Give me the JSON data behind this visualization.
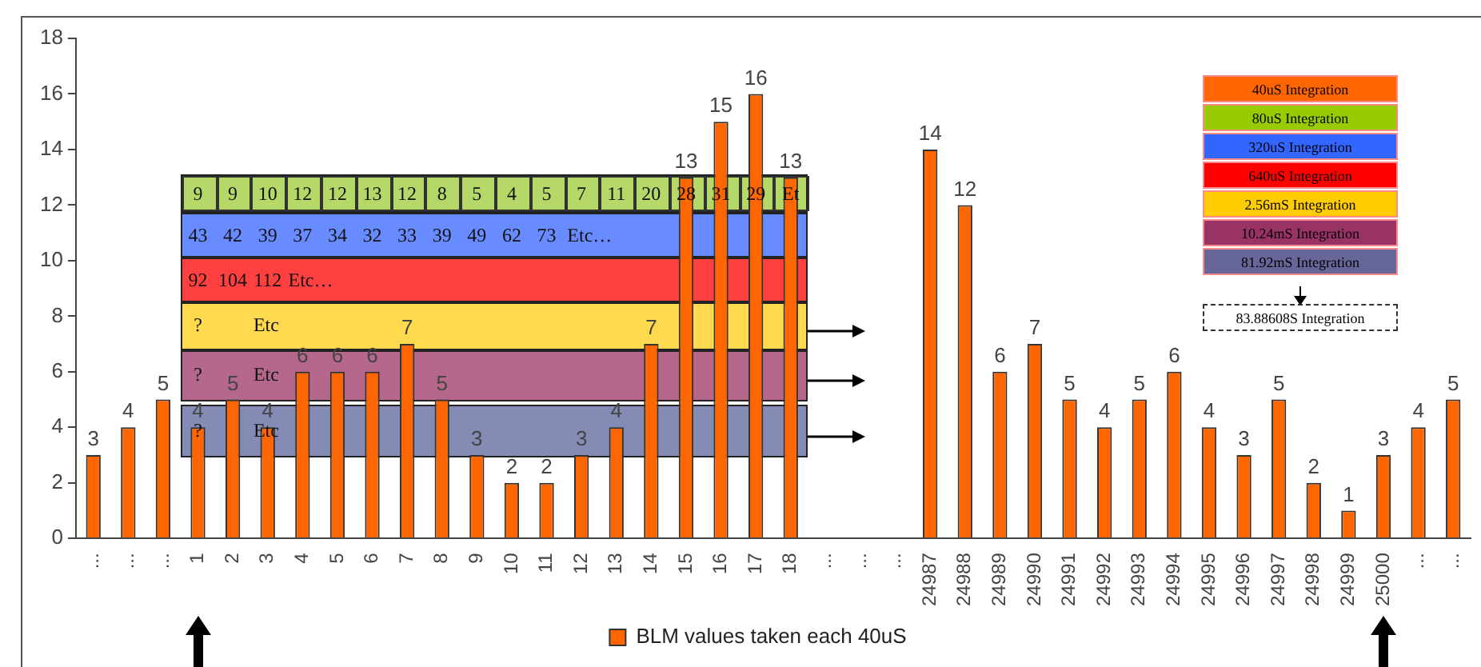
{
  "chart_data": {
    "type": "bar",
    "categories": [
      "...",
      "...",
      "...",
      "1",
      "2",
      "3",
      "4",
      "5",
      "6",
      "7",
      "8",
      "9",
      "10",
      "11",
      "12",
      "13",
      "14",
      "15",
      "16",
      "17",
      "18",
      "...",
      "...",
      "...",
      "24987",
      "24988",
      "24989",
      "24990",
      "24991",
      "24992",
      "24993",
      "24994",
      "24995",
      "24996",
      "24997",
      "24998",
      "24999",
      "25000",
      "...",
      "..."
    ],
    "series": [
      {
        "name": "BLM values taken each 40uS",
        "color": "#ff6600",
        "values": [
          3,
          4,
          5,
          4,
          5,
          4,
          6,
          6,
          6,
          7,
          5,
          3,
          2,
          2,
          3,
          4,
          7,
          13,
          15,
          16,
          13,
          null,
          null,
          null,
          14,
          12,
          6,
          7,
          5,
          4,
          5,
          6,
          4,
          3,
          5,
          2,
          1,
          3,
          4,
          5
        ]
      }
    ],
    "ylim": [
      0,
      18
    ],
    "yticks": [
      0,
      2,
      4,
      6,
      8,
      10,
      12,
      14,
      16,
      18
    ],
    "data_labels": true,
    "grid": false,
    "legend": "bottom",
    "annotations": [
      "40uS Integration",
      "80uS Integration",
      "320uS Integration",
      "640uS Integration",
      "2.56mS Integration",
      "10.24mS Integration",
      "81.92mS Integration",
      "83.88608S Integration",
      "9",
      "9",
      "10",
      "12",
      "12",
      "13",
      "12",
      "8",
      "5",
      "4",
      "5",
      "7",
      "11",
      "20",
      "28",
      "31",
      "29",
      "Et",
      "43",
      "42",
      "39",
      "37",
      "34",
      "32",
      "33",
      "39",
      "49",
      "62",
      "73",
      "Etc…",
      "92",
      "104",
      "112",
      "Etc…",
      "?",
      "Etc",
      "?",
      "Etc",
      "?",
      "Etc"
    ]
  }
}
